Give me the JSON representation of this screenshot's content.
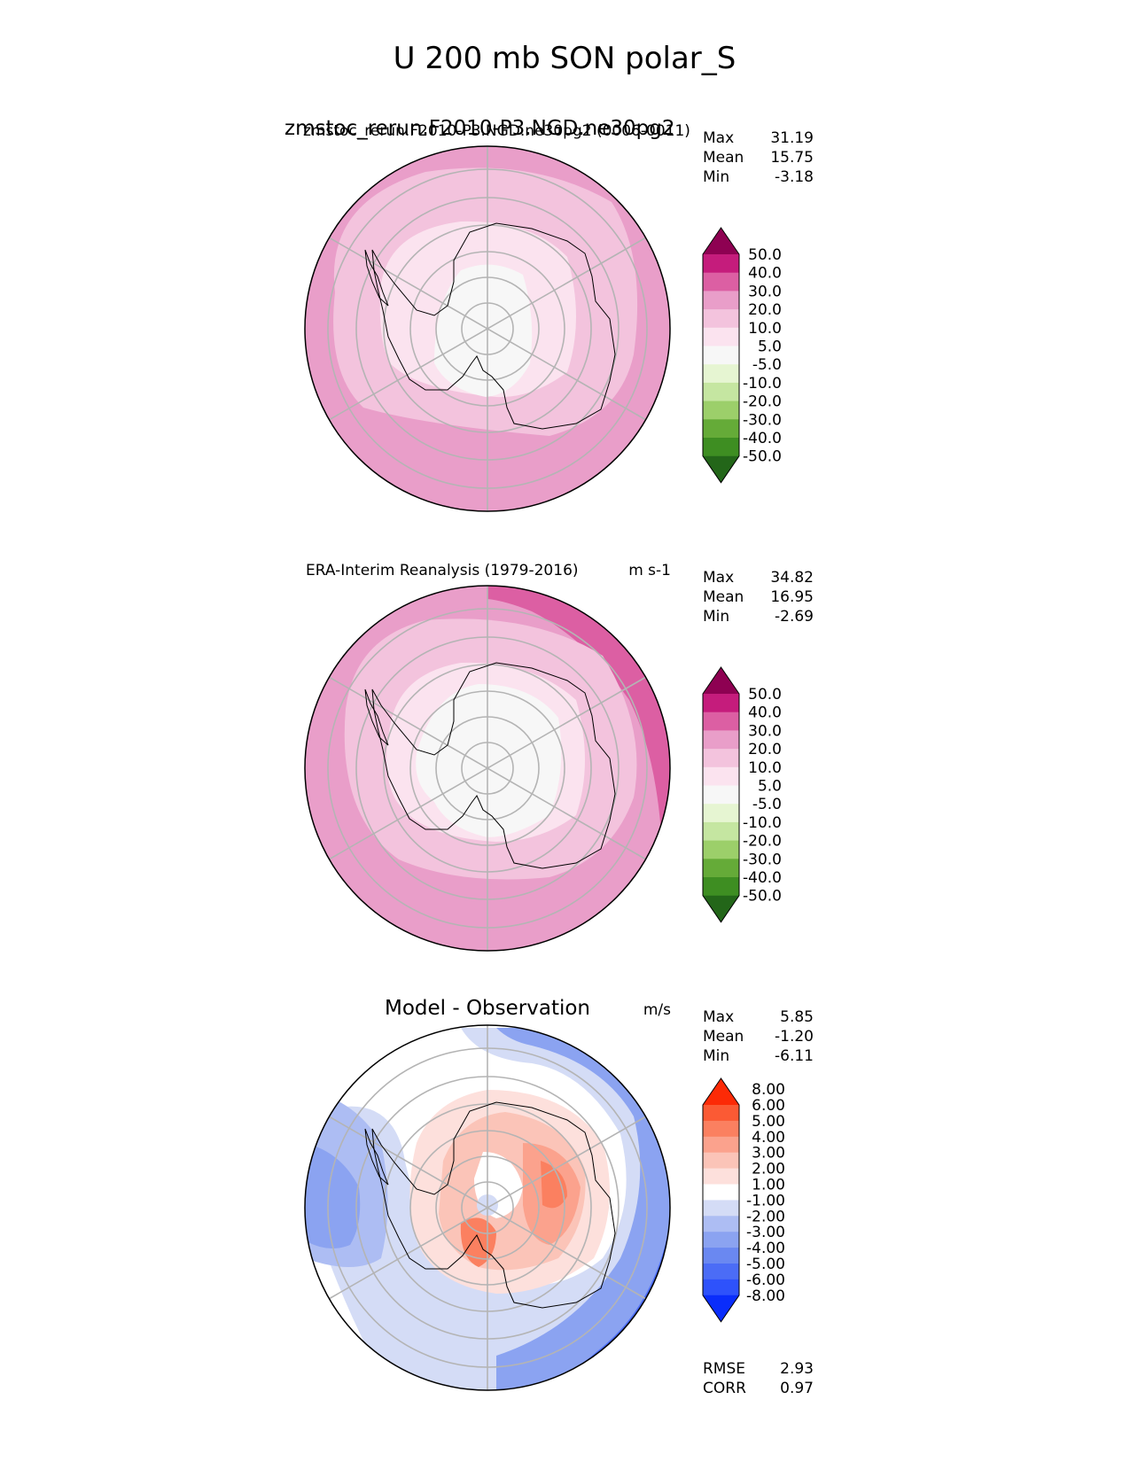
{
  "figure_title": "U 200 mb SON polar_S",
  "colors": {
    "grid": "#b4b4b4",
    "coast": "#000000",
    "wind_scale": [
      "#236619",
      "#3e8e22",
      "#65ab38",
      "#9ccf6a",
      "#c5e6a1",
      "#e6f5d2",
      "#f7f7f7",
      "#fbe3ef",
      "#f3c3dd",
      "#e99ec9",
      "#dc5fa3",
      "#c51c7c",
      "#8e0152"
    ],
    "diff_scale": [
      "#0a2dfb",
      "#2e52fb",
      "#4b6cf6",
      "#6a88f1",
      "#8ba3f1",
      "#adbdf3",
      "#d4dcf6",
      "#ffffff",
      "#fde0dc",
      "#fbc4b8",
      "#fba28d",
      "#fb8060",
      "#fb5a34",
      "#fc2a06"
    ]
  },
  "chart_data": [
    {
      "type": "heatmap",
      "projection": "south-polar-stereographic",
      "title_left": "zmstoc_rerun.F2010-P3.NGD.ne30pg2",
      "title_left_overlap": "zmstoc_rerun.F2010-P3.NGD.ne30pg2 (0006-0011)",
      "title_right": "",
      "stats_labels": [
        "Max",
        "Mean",
        "Min"
      ],
      "stats_values": [
        "31.19",
        "15.75",
        "-3.18"
      ],
      "levels": [
        "-50.0",
        "-40.0",
        "-30.0",
        "-20.0",
        "-10.0",
        "-5.0",
        "5.0",
        "10.0",
        "20.0",
        "30.0",
        "40.0",
        "50.0"
      ],
      "field": {
        "outer_value": 20,
        "band_value": 10,
        "inner_value": 5,
        "core_value": 0,
        "jet_value": 30
      },
      "latitude_circles": [
        -80,
        -70,
        -60,
        -50,
        -40
      ]
    },
    {
      "type": "heatmap",
      "projection": "south-polar-stereographic",
      "title_left": "ERA-Interim Reanalysis (1979-2016)",
      "title_right": "m s-1",
      "stats_labels": [
        "Max",
        "Mean",
        "Min"
      ],
      "stats_values": [
        "34.82",
        "16.95",
        "-2.69"
      ],
      "levels": [
        "-50.0",
        "-40.0",
        "-30.0",
        "-20.0",
        "-10.0",
        "-5.0",
        "5.0",
        "10.0",
        "20.0",
        "30.0",
        "40.0",
        "50.0"
      ],
      "field": {
        "outer_value": 20,
        "band_value": 10,
        "inner_value": 5,
        "core_value": 0,
        "jet_value": 30
      },
      "latitude_circles": [
        -80,
        -70,
        -60,
        -50,
        -40
      ]
    },
    {
      "type": "heatmap",
      "projection": "south-polar-stereographic",
      "title_center": "Model - Observation",
      "title_right": "m/s",
      "stats_labels": [
        "Max",
        "Mean",
        "Min"
      ],
      "stats_values": [
        "5.85",
        "-1.20",
        "-6.11"
      ],
      "levels": [
        "-8.00",
        "-6.00",
        "-5.00",
        "-4.00",
        "-3.00",
        "-2.00",
        "-1.00",
        "1.00",
        "2.00",
        "3.00",
        "4.00",
        "5.00",
        "6.00",
        "8.00"
      ],
      "metrics_labels": [
        "RMSE",
        "CORR"
      ],
      "metrics_values": [
        "2.93",
        "0.97"
      ],
      "latitude_circles": [
        -80,
        -70,
        -60,
        -50,
        -40
      ]
    }
  ]
}
